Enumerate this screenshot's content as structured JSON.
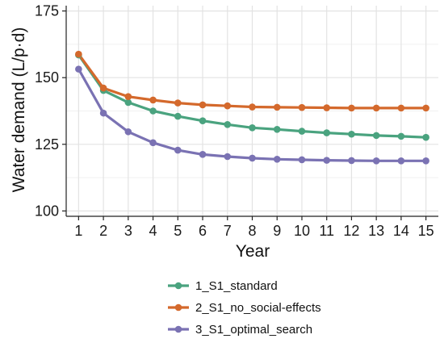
{
  "chart_data": {
    "type": "line",
    "title": "",
    "xlabel": "Year",
    "ylabel": "Water demand (L/p·d)",
    "x": [
      1,
      2,
      3,
      4,
      5,
      6,
      7,
      8,
      9,
      10,
      11,
      12,
      13,
      14,
      15
    ],
    "xlim": [
      0.5,
      15.5
    ],
    "ylim": [
      98,
      177
    ],
    "yticks": [
      100,
      125,
      150,
      175
    ],
    "grid": true,
    "legend_position": "bottom",
    "series": [
      {
        "name": "1_S1_standard",
        "color": "#4aa37f",
        "values": [
          158.5,
          145.2,
          140.7,
          137.5,
          135.5,
          133.8,
          132.4,
          131.2,
          130.6,
          129.9,
          129.3,
          128.8,
          128.3,
          128.0,
          127.6
        ]
      },
      {
        "name": "2_S1_no_social-effects",
        "color": "#d4692c",
        "values": [
          158.8,
          146.1,
          142.9,
          141.6,
          140.5,
          139.8,
          139.4,
          139.0,
          138.9,
          138.8,
          138.7,
          138.6,
          138.6,
          138.6,
          138.6
        ]
      },
      {
        "name": "3_S1_optimal_search",
        "color": "#7a72b3",
        "values": [
          153.2,
          136.7,
          129.7,
          125.6,
          122.8,
          121.2,
          120.4,
          119.8,
          119.4,
          119.2,
          119.0,
          118.9,
          118.8,
          118.8,
          118.8
        ]
      }
    ]
  }
}
